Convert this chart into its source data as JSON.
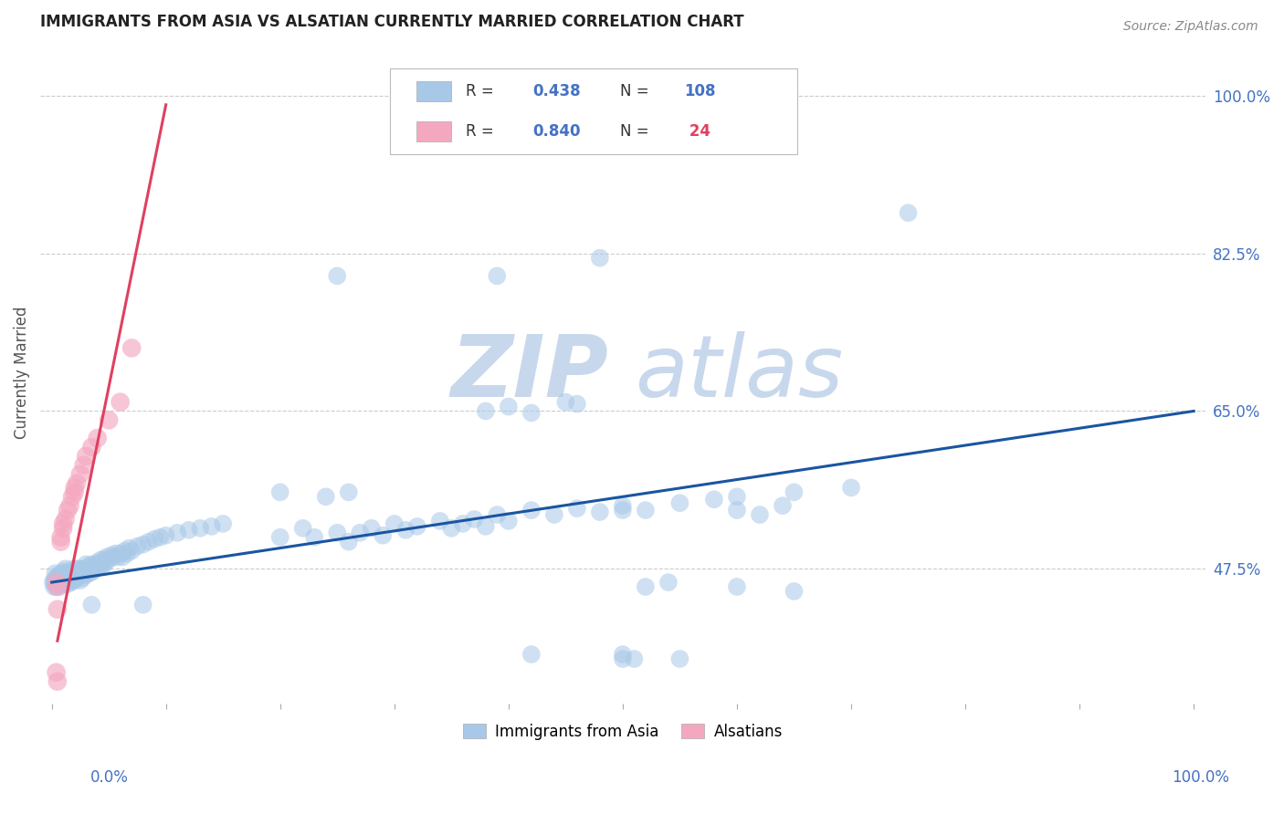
{
  "title": "IMMIGRANTS FROM ASIA VS ALSATIAN CURRENTLY MARRIED CORRELATION CHART",
  "source": "Source: ZipAtlas.com",
  "ylabel": "Currently Married",
  "ytick_labels": [
    "100.0%",
    "82.5%",
    "65.0%",
    "47.5%"
  ],
  "ytick_values": [
    1.0,
    0.825,
    0.65,
    0.475
  ],
  "blue_color": "#A8C8E8",
  "pink_color": "#F4A8C0",
  "line_blue": "#1A55A0",
  "line_pink": "#E04060",
  "blue_line_x": [
    0.0,
    1.0
  ],
  "blue_line_y": [
    0.46,
    0.65
  ],
  "pink_line_x": [
    0.005,
    0.1
  ],
  "pink_line_y": [
    0.395,
    0.99
  ],
  "xlim": [
    -0.01,
    1.01
  ],
  "ylim": [
    0.325,
    1.06
  ],
  "figsize": [
    14.06,
    8.92
  ],
  "dpi": 100,
  "blue_scatter": [
    [
      0.001,
      0.46
    ],
    [
      0.002,
      0.455
    ],
    [
      0.002,
      0.462
    ],
    [
      0.003,
      0.458
    ],
    [
      0.003,
      0.463
    ],
    [
      0.003,
      0.47
    ],
    [
      0.004,
      0.46
    ],
    [
      0.004,
      0.465
    ],
    [
      0.004,
      0.455
    ],
    [
      0.005,
      0.462
    ],
    [
      0.005,
      0.458
    ],
    [
      0.005,
      0.467
    ],
    [
      0.006,
      0.46
    ],
    [
      0.006,
      0.465
    ],
    [
      0.006,
      0.458
    ],
    [
      0.007,
      0.462
    ],
    [
      0.007,
      0.468
    ],
    [
      0.007,
      0.455
    ],
    [
      0.008,
      0.46
    ],
    [
      0.008,
      0.465
    ],
    [
      0.008,
      0.458
    ],
    [
      0.009,
      0.462
    ],
    [
      0.009,
      0.458
    ],
    [
      0.009,
      0.47
    ],
    [
      0.01,
      0.46
    ],
    [
      0.01,
      0.465
    ],
    [
      0.01,
      0.472
    ],
    [
      0.011,
      0.462
    ],
    [
      0.011,
      0.458
    ],
    [
      0.011,
      0.467
    ],
    [
      0.012,
      0.46
    ],
    [
      0.012,
      0.465
    ],
    [
      0.012,
      0.475
    ],
    [
      0.013,
      0.462
    ],
    [
      0.013,
      0.47
    ],
    [
      0.014,
      0.465
    ],
    [
      0.014,
      0.458
    ],
    [
      0.015,
      0.462
    ],
    [
      0.015,
      0.468
    ],
    [
      0.016,
      0.465
    ],
    [
      0.016,
      0.472
    ],
    [
      0.017,
      0.46
    ],
    [
      0.017,
      0.468
    ],
    [
      0.018,
      0.47
    ],
    [
      0.018,
      0.462
    ],
    [
      0.019,
      0.465
    ],
    [
      0.019,
      0.475
    ],
    [
      0.02,
      0.468
    ],
    [
      0.02,
      0.462
    ],
    [
      0.021,
      0.47
    ],
    [
      0.022,
      0.465
    ],
    [
      0.022,
      0.475
    ],
    [
      0.023,
      0.472
    ],
    [
      0.024,
      0.468
    ],
    [
      0.025,
      0.475
    ],
    [
      0.025,
      0.462
    ],
    [
      0.026,
      0.47
    ],
    [
      0.027,
      0.465
    ],
    [
      0.028,
      0.472
    ],
    [
      0.029,
      0.475
    ],
    [
      0.03,
      0.468
    ],
    [
      0.03,
      0.48
    ],
    [
      0.031,
      0.472
    ],
    [
      0.032,
      0.478
    ],
    [
      0.033,
      0.47
    ],
    [
      0.034,
      0.475
    ],
    [
      0.035,
      0.48
    ],
    [
      0.036,
      0.472
    ],
    [
      0.037,
      0.478
    ],
    [
      0.038,
      0.475
    ],
    [
      0.039,
      0.48
    ],
    [
      0.04,
      0.482
    ],
    [
      0.042,
      0.478
    ],
    [
      0.043,
      0.485
    ],
    [
      0.044,
      0.48
    ],
    [
      0.045,
      0.478
    ],
    [
      0.046,
      0.485
    ],
    [
      0.047,
      0.482
    ],
    [
      0.048,
      0.488
    ],
    [
      0.05,
      0.485
    ],
    [
      0.052,
      0.49
    ],
    [
      0.054,
      0.488
    ],
    [
      0.056,
      0.492
    ],
    [
      0.058,
      0.488
    ],
    [
      0.06,
      0.492
    ],
    [
      0.062,
      0.488
    ],
    [
      0.064,
      0.495
    ],
    [
      0.066,
      0.492
    ],
    [
      0.068,
      0.498
    ],
    [
      0.07,
      0.495
    ],
    [
      0.075,
      0.5
    ],
    [
      0.08,
      0.502
    ],
    [
      0.085,
      0.505
    ],
    [
      0.09,
      0.508
    ],
    [
      0.095,
      0.51
    ],
    [
      0.1,
      0.512
    ],
    [
      0.11,
      0.515
    ],
    [
      0.12,
      0.518
    ],
    [
      0.13,
      0.52
    ],
    [
      0.14,
      0.522
    ],
    [
      0.15,
      0.525
    ],
    [
      0.035,
      0.435
    ],
    [
      0.08,
      0.435
    ],
    [
      0.2,
      0.51
    ],
    [
      0.22,
      0.52
    ],
    [
      0.23,
      0.51
    ],
    [
      0.25,
      0.515
    ],
    [
      0.26,
      0.505
    ],
    [
      0.27,
      0.515
    ],
    [
      0.28,
      0.52
    ],
    [
      0.29,
      0.512
    ],
    [
      0.3,
      0.525
    ],
    [
      0.31,
      0.518
    ],
    [
      0.32,
      0.522
    ],
    [
      0.34,
      0.528
    ],
    [
      0.35,
      0.52
    ],
    [
      0.36,
      0.525
    ],
    [
      0.37,
      0.53
    ],
    [
      0.38,
      0.522
    ],
    [
      0.39,
      0.535
    ],
    [
      0.4,
      0.528
    ],
    [
      0.42,
      0.54
    ],
    [
      0.44,
      0.535
    ],
    [
      0.46,
      0.542
    ],
    [
      0.48,
      0.538
    ],
    [
      0.5,
      0.545
    ],
    [
      0.52,
      0.54
    ],
    [
      0.55,
      0.548
    ],
    [
      0.58,
      0.552
    ],
    [
      0.6,
      0.555
    ],
    [
      0.65,
      0.56
    ],
    [
      0.7,
      0.565
    ],
    [
      0.2,
      0.56
    ],
    [
      0.24,
      0.555
    ],
    [
      0.26,
      0.56
    ],
    [
      0.38,
      0.65
    ],
    [
      0.4,
      0.655
    ],
    [
      0.42,
      0.648
    ],
    [
      0.45,
      0.66
    ],
    [
      0.46,
      0.658
    ],
    [
      0.5,
      0.54
    ],
    [
      0.52,
      0.455
    ],
    [
      0.54,
      0.46
    ],
    [
      0.6,
      0.54
    ],
    [
      0.62,
      0.535
    ],
    [
      0.64,
      0.545
    ],
    [
      0.75,
      0.87
    ],
    [
      0.5,
      0.38
    ],
    [
      0.51,
      0.375
    ],
    [
      0.6,
      0.455
    ],
    [
      0.65,
      0.45
    ],
    [
      0.25,
      0.8
    ],
    [
      0.39,
      0.8
    ],
    [
      0.48,
      0.82
    ],
    [
      0.5,
      0.375
    ],
    [
      0.55,
      0.375
    ],
    [
      0.42,
      0.38
    ]
  ],
  "pink_scatter": [
    [
      0.004,
      0.46
    ],
    [
      0.005,
      0.455
    ],
    [
      0.005,
      0.43
    ],
    [
      0.008,
      0.505
    ],
    [
      0.008,
      0.51
    ],
    [
      0.01,
      0.52
    ],
    [
      0.01,
      0.525
    ],
    [
      0.012,
      0.53
    ],
    [
      0.014,
      0.54
    ],
    [
      0.016,
      0.545
    ],
    [
      0.018,
      0.555
    ],
    [
      0.02,
      0.56
    ],
    [
      0.02,
      0.565
    ],
    [
      0.022,
      0.57
    ],
    [
      0.025,
      0.58
    ],
    [
      0.028,
      0.59
    ],
    [
      0.03,
      0.6
    ],
    [
      0.035,
      0.61
    ],
    [
      0.04,
      0.62
    ],
    [
      0.05,
      0.64
    ],
    [
      0.06,
      0.66
    ],
    [
      0.07,
      0.72
    ],
    [
      0.004,
      0.36
    ],
    [
      0.005,
      0.35
    ]
  ]
}
